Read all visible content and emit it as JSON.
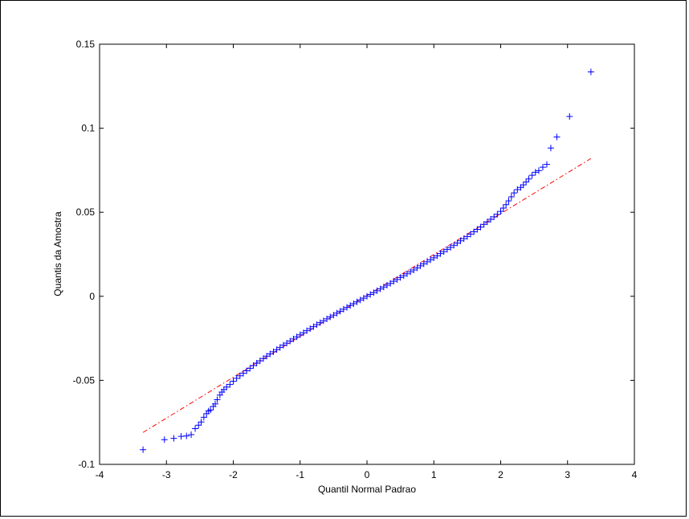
{
  "chart_data": {
    "type": "scatter",
    "title": "",
    "xlabel": "Quantil Normal Padrao",
    "ylabel": "Quantis da Amostra",
    "xlim": [
      -4,
      4
    ],
    "ylim": [
      -0.1,
      0.15
    ],
    "xticks": [
      -4,
      -3,
      -2,
      -1,
      0,
      1,
      2,
      3,
      4
    ],
    "xtick_labels": [
      "-4",
      "-3",
      "-2",
      "-1",
      "0",
      "1",
      "2",
      "3",
      "4"
    ],
    "yticks": [
      -0.1,
      -0.05,
      0,
      0.05,
      0.1,
      0.15
    ],
    "ytick_labels": [
      "-0.1",
      "-0.05",
      "0",
      "0.05",
      "0.1",
      "0.15"
    ],
    "grid": false,
    "marker": "+",
    "marker_color": "#0000ff",
    "reference_line": {
      "style": "dash-dot",
      "color": "#ff0000",
      "x": [
        -3.35,
        3.35
      ],
      "y": [
        -0.081,
        0.082
      ]
    },
    "series": [
      {
        "points": [
          [
            -3.35,
            -0.0913
          ],
          [
            -3.03,
            -0.0853
          ],
          [
            -2.89,
            -0.0845
          ],
          [
            -2.78,
            -0.0833
          ],
          [
            -2.7,
            -0.0831
          ],
          [
            -2.63,
            -0.0823
          ],
          [
            -2.57,
            -0.0787
          ],
          [
            -2.52,
            -0.0767
          ],
          [
            -2.48,
            -0.0748
          ],
          [
            -2.44,
            -0.072
          ],
          [
            -2.4,
            -0.0698
          ],
          [
            -2.37,
            -0.0683
          ],
          [
            -2.34,
            -0.0676
          ],
          [
            -2.3,
            -0.0655
          ],
          [
            -2.27,
            -0.064
          ],
          [
            -2.24,
            -0.0615
          ],
          [
            -2.2,
            -0.0588
          ],
          [
            -2.17,
            -0.057
          ],
          [
            -2.14,
            -0.0555
          ],
          [
            -2.1,
            -0.054
          ],
          [
            -2.05,
            -0.0525
          ],
          [
            -2.0,
            -0.0505
          ],
          [
            -1.95,
            -0.0488
          ],
          [
            -1.9,
            -0.0473
          ],
          [
            -1.85,
            -0.0458
          ],
          [
            -1.8,
            -0.0443
          ],
          [
            -1.75,
            -0.0428
          ],
          [
            -1.7,
            -0.0412
          ],
          [
            -1.65,
            -0.0398
          ],
          [
            -1.6,
            -0.0384
          ],
          [
            -1.55,
            -0.037
          ],
          [
            -1.5,
            -0.0356
          ],
          [
            -1.45,
            -0.0343
          ],
          [
            -1.4,
            -0.033
          ],
          [
            -1.35,
            -0.0317
          ],
          [
            -1.3,
            -0.0304
          ],
          [
            -1.25,
            -0.0291
          ],
          [
            -1.2,
            -0.0279
          ],
          [
            -1.15,
            -0.0266
          ],
          [
            -1.1,
            -0.0254
          ],
          [
            -1.05,
            -0.0241
          ],
          [
            -1.0,
            -0.0229
          ],
          [
            -0.95,
            -0.0217
          ],
          [
            -0.9,
            -0.0205
          ],
          [
            -0.85,
            -0.0193
          ],
          [
            -0.8,
            -0.0181
          ],
          [
            -0.75,
            -0.0169
          ],
          [
            -0.7,
            -0.0157
          ],
          [
            -0.65,
            -0.0146
          ],
          [
            -0.6,
            -0.0134
          ],
          [
            -0.55,
            -0.0123
          ],
          [
            -0.5,
            -0.0112
          ],
          [
            -0.45,
            -0.01
          ],
          [
            -0.4,
            -0.0089
          ],
          [
            -0.35,
            -0.0077
          ],
          [
            -0.3,
            -0.0066
          ],
          [
            -0.25,
            -0.0055
          ],
          [
            -0.2,
            -0.0044
          ],
          [
            -0.15,
            -0.0033
          ],
          [
            -0.1,
            -0.0022
          ],
          [
            -0.05,
            -0.0011
          ],
          [
            0.0,
            0.0
          ],
          [
            0.05,
            0.0011
          ],
          [
            0.1,
            0.0022
          ],
          [
            0.15,
            0.0033
          ],
          [
            0.2,
            0.0044
          ],
          [
            0.25,
            0.0055
          ],
          [
            0.3,
            0.0066
          ],
          [
            0.35,
            0.0077
          ],
          [
            0.4,
            0.0089
          ],
          [
            0.45,
            0.01
          ],
          [
            0.5,
            0.0112
          ],
          [
            0.55,
            0.0123
          ],
          [
            0.6,
            0.0134
          ],
          [
            0.65,
            0.0146
          ],
          [
            0.7,
            0.0157
          ],
          [
            0.75,
            0.0169
          ],
          [
            0.8,
            0.0181
          ],
          [
            0.85,
            0.0193
          ],
          [
            0.9,
            0.0205
          ],
          [
            0.95,
            0.0217
          ],
          [
            1.0,
            0.0229
          ],
          [
            1.05,
            0.0241
          ],
          [
            1.1,
            0.0254
          ],
          [
            1.15,
            0.0266
          ],
          [
            1.2,
            0.0279
          ],
          [
            1.25,
            0.0291
          ],
          [
            1.3,
            0.0304
          ],
          [
            1.35,
            0.0317
          ],
          [
            1.4,
            0.033
          ],
          [
            1.45,
            0.0343
          ],
          [
            1.5,
            0.0356
          ],
          [
            1.55,
            0.037
          ],
          [
            1.6,
            0.0384
          ],
          [
            1.65,
            0.0398
          ],
          [
            1.7,
            0.0412
          ],
          [
            1.75,
            0.0428
          ],
          [
            1.8,
            0.0443
          ],
          [
            1.85,
            0.0458
          ],
          [
            1.9,
            0.0473
          ],
          [
            1.95,
            0.0488
          ],
          [
            2.0,
            0.0505
          ],
          [
            2.04,
            0.0525
          ],
          [
            2.08,
            0.0545
          ],
          [
            2.12,
            0.0568
          ],
          [
            2.16,
            0.0592
          ],
          [
            2.2,
            0.0615
          ],
          [
            2.25,
            0.0635
          ],
          [
            2.3,
            0.0648
          ],
          [
            2.34,
            0.0663
          ],
          [
            2.38,
            0.068
          ],
          [
            2.42,
            0.0698
          ],
          [
            2.47,
            0.072
          ],
          [
            2.52,
            0.0738
          ],
          [
            2.57,
            0.0748
          ],
          [
            2.63,
            0.0768
          ],
          [
            2.69,
            0.0785
          ],
          [
            2.75,
            0.0882
          ],
          [
            2.84,
            0.0948
          ],
          [
            3.03,
            0.107
          ],
          [
            3.35,
            0.1335
          ]
        ]
      }
    ]
  }
}
